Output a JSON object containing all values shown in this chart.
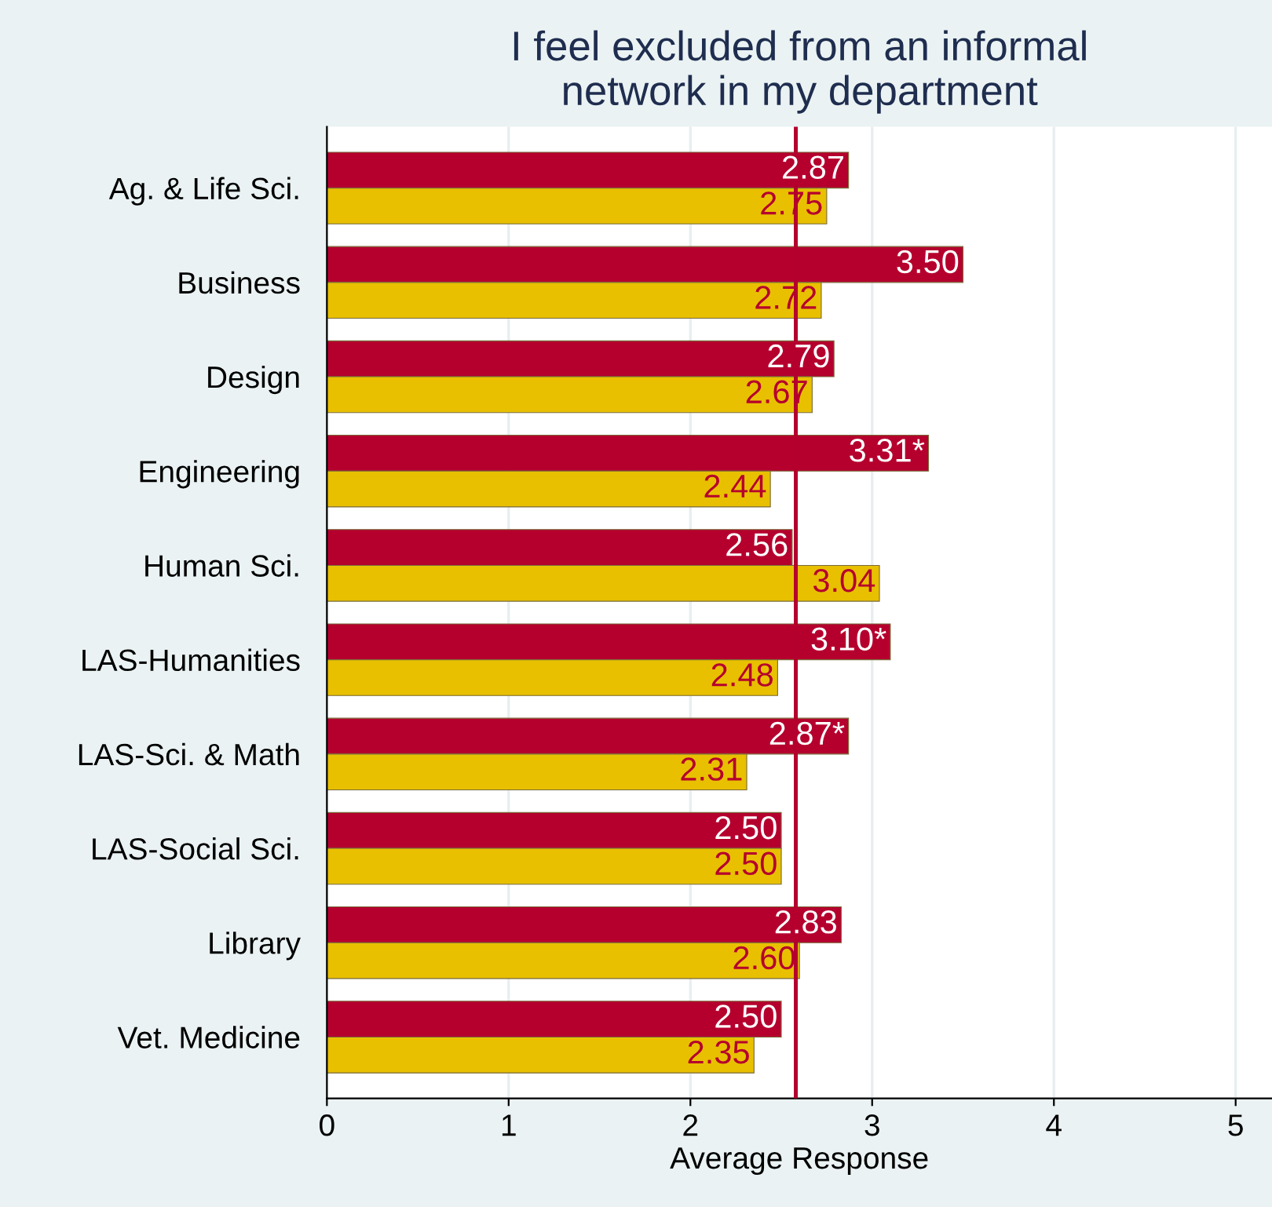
{
  "chart_data": {
    "type": "bar",
    "orientation": "horizontal",
    "title": "I feel excluded from an informal\nnetwork in my department",
    "xlabel": "Average Response",
    "categories": [
      "Ag. & Life Sci.",
      "Business",
      "Design",
      "Engineering",
      "Human Sci.",
      "LAS-Humanities",
      "LAS-Sci. & Math",
      "LAS-Social Sci.",
      "Library",
      "Vet. Medicine"
    ],
    "series": [
      {
        "color": "#b5002e",
        "values": [
          2.87,
          3.5,
          2.79,
          3.31,
          2.56,
          3.1,
          2.87,
          2.5,
          2.83,
          2.5
        ],
        "value_labels": [
          "2.87",
          "3.50",
          "2.79",
          "3.31*",
          "2.56",
          "3.10*",
          "2.87*",
          "2.50",
          "2.83",
          "2.50"
        ]
      },
      {
        "color": "#e8c000",
        "values": [
          2.75,
          2.72,
          2.67,
          2.44,
          3.04,
          2.48,
          2.31,
          2.5,
          2.6,
          2.35
        ],
        "value_labels": [
          "2.75",
          "2.72",
          "2.67",
          "2.44",
          "3.04",
          "2.48",
          "2.31",
          "2.50",
          "2.60",
          "2.35"
        ]
      }
    ],
    "xlim": [
      0,
      5.2
    ],
    "xticks": [
      0,
      1,
      2,
      3,
      4,
      5
    ],
    "grid": "x",
    "ref_lines": [
      {
        "axis": "x",
        "value": 2.58,
        "color": "#b5002e"
      }
    ]
  }
}
